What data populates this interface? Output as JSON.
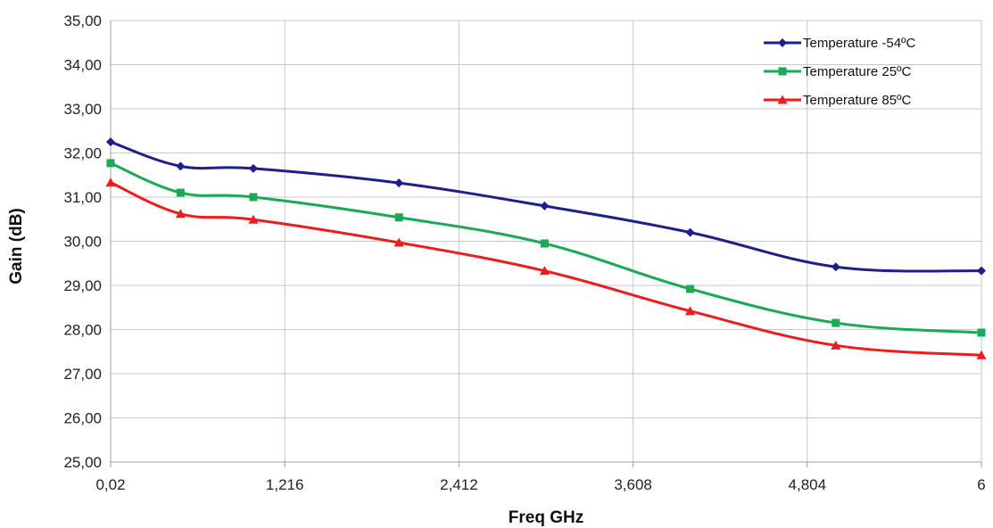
{
  "chart_data": {
    "type": "line",
    "title": "",
    "xlabel": "Freq GHz",
    "ylabel": "Gain (dB)",
    "x_ticks": [
      "0,02",
      "1,216",
      "2,412",
      "3,608",
      "4,804",
      "6"
    ],
    "x_tick_values": [
      0.02,
      1.216,
      2.412,
      3.608,
      4.804,
      6
    ],
    "y_ticks": [
      "25,00",
      "26,00",
      "27,00",
      "28,00",
      "29,00",
      "30,00",
      "31,00",
      "32,00",
      "33,00",
      "34,00",
      "35,00"
    ],
    "xlim": [
      0.02,
      6
    ],
    "ylim": [
      25,
      35
    ],
    "grid": true,
    "legend_position": "top-right",
    "x": [
      0.02,
      0.5,
      1.0,
      2.0,
      3.0,
      4.0,
      5.0,
      6.0
    ],
    "series": [
      {
        "name": "Temperature -54ºC",
        "color": "#1f1f8c",
        "marker": "diamond",
        "values": [
          32.25,
          31.7,
          31.65,
          31.32,
          30.8,
          30.2,
          29.42,
          29.33
        ]
      },
      {
        "name": "Temperature 25ºC",
        "color": "#1aaa55",
        "marker": "square",
        "values": [
          31.77,
          31.1,
          31.0,
          30.54,
          29.95,
          28.92,
          28.15,
          27.93
        ]
      },
      {
        "name": "Temperature 85ºC",
        "color": "#ee1c1c",
        "marker": "triangle",
        "values": [
          31.33,
          30.62,
          30.49,
          29.97,
          29.33,
          28.42,
          27.64,
          27.42
        ]
      }
    ]
  }
}
